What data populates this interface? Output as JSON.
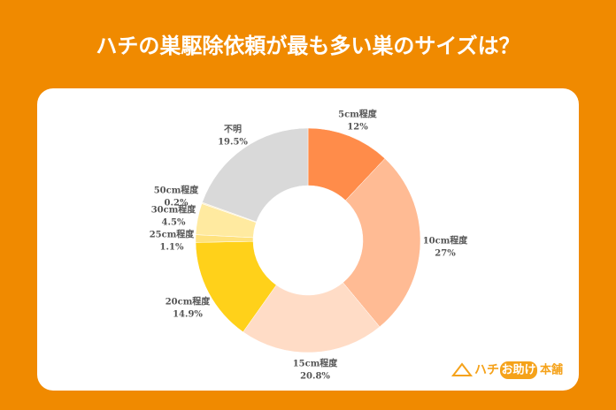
{
  "chart_data": {
    "type": "donut",
    "title": "ハチの巣駆除依頼が最も多い巣のサイズは？",
    "categories": [
      "5cm程度",
      "10cm程度",
      "15cm程度",
      "20cm程度",
      "25cm程度",
      "30cm程度",
      "50cm程度",
      "不明"
    ],
    "values": [
      12,
      27,
      20.8,
      14.9,
      1.1,
      4.5,
      0.2,
      19.5
    ],
    "value_labels": [
      "12%",
      "27%",
      "20.8%",
      "14.9%",
      "1.1%",
      "4.5%",
      "0.2%",
      "19.5%"
    ],
    "colors": [
      "#ff8c4a",
      "#ffbb94",
      "#ffdcc6",
      "#ffd11a",
      "#ffe27e",
      "#ffeaa0",
      "#fff3d2",
      "#d9d9d9"
    ]
  },
  "logo": [
    "ハチ",
    "お助け",
    "本舗"
  ]
}
